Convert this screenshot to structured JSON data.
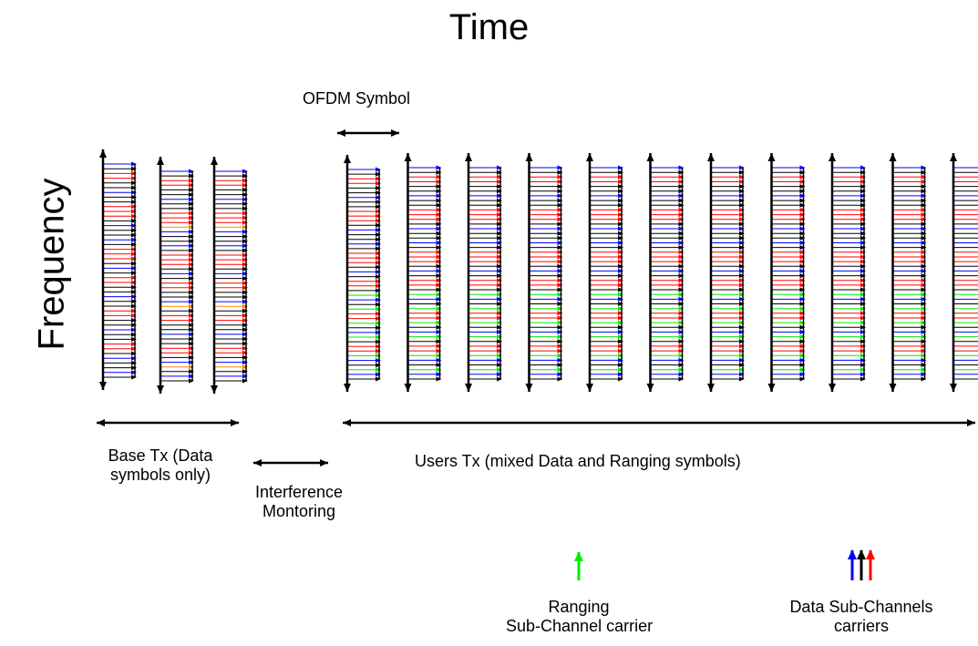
{
  "diagram": {
    "title": "Time",
    "axis_label": "Frequency",
    "ofdm_symbol_label": "OFDM Symbol",
    "base_tx_label": [
      "Base Tx (Data",
      "symbols only)"
    ],
    "interference_label": [
      "Interference",
      "Montoring"
    ],
    "users_tx_label": "Users Tx (mixed Data and Ranging symbols)",
    "legend": {
      "ranging": {
        "label": [
          "Ranging",
          "Sub-Channel carrier"
        ],
        "color": "#00ee00"
      },
      "data": {
        "label": [
          "Data Sub-Channels",
          "carriers"
        ],
        "colors": [
          "#0000ff",
          "#000000",
          "#ff0000"
        ]
      }
    },
    "carrier_colors": {
      "data_blue": "#0000ff",
      "data_black": "#000000",
      "data_red": "#ff0000",
      "ranging_green": "#00ee00",
      "orange": "#ff8800"
    },
    "base_symbol_count": 3,
    "user_symbol_count": 11
  }
}
